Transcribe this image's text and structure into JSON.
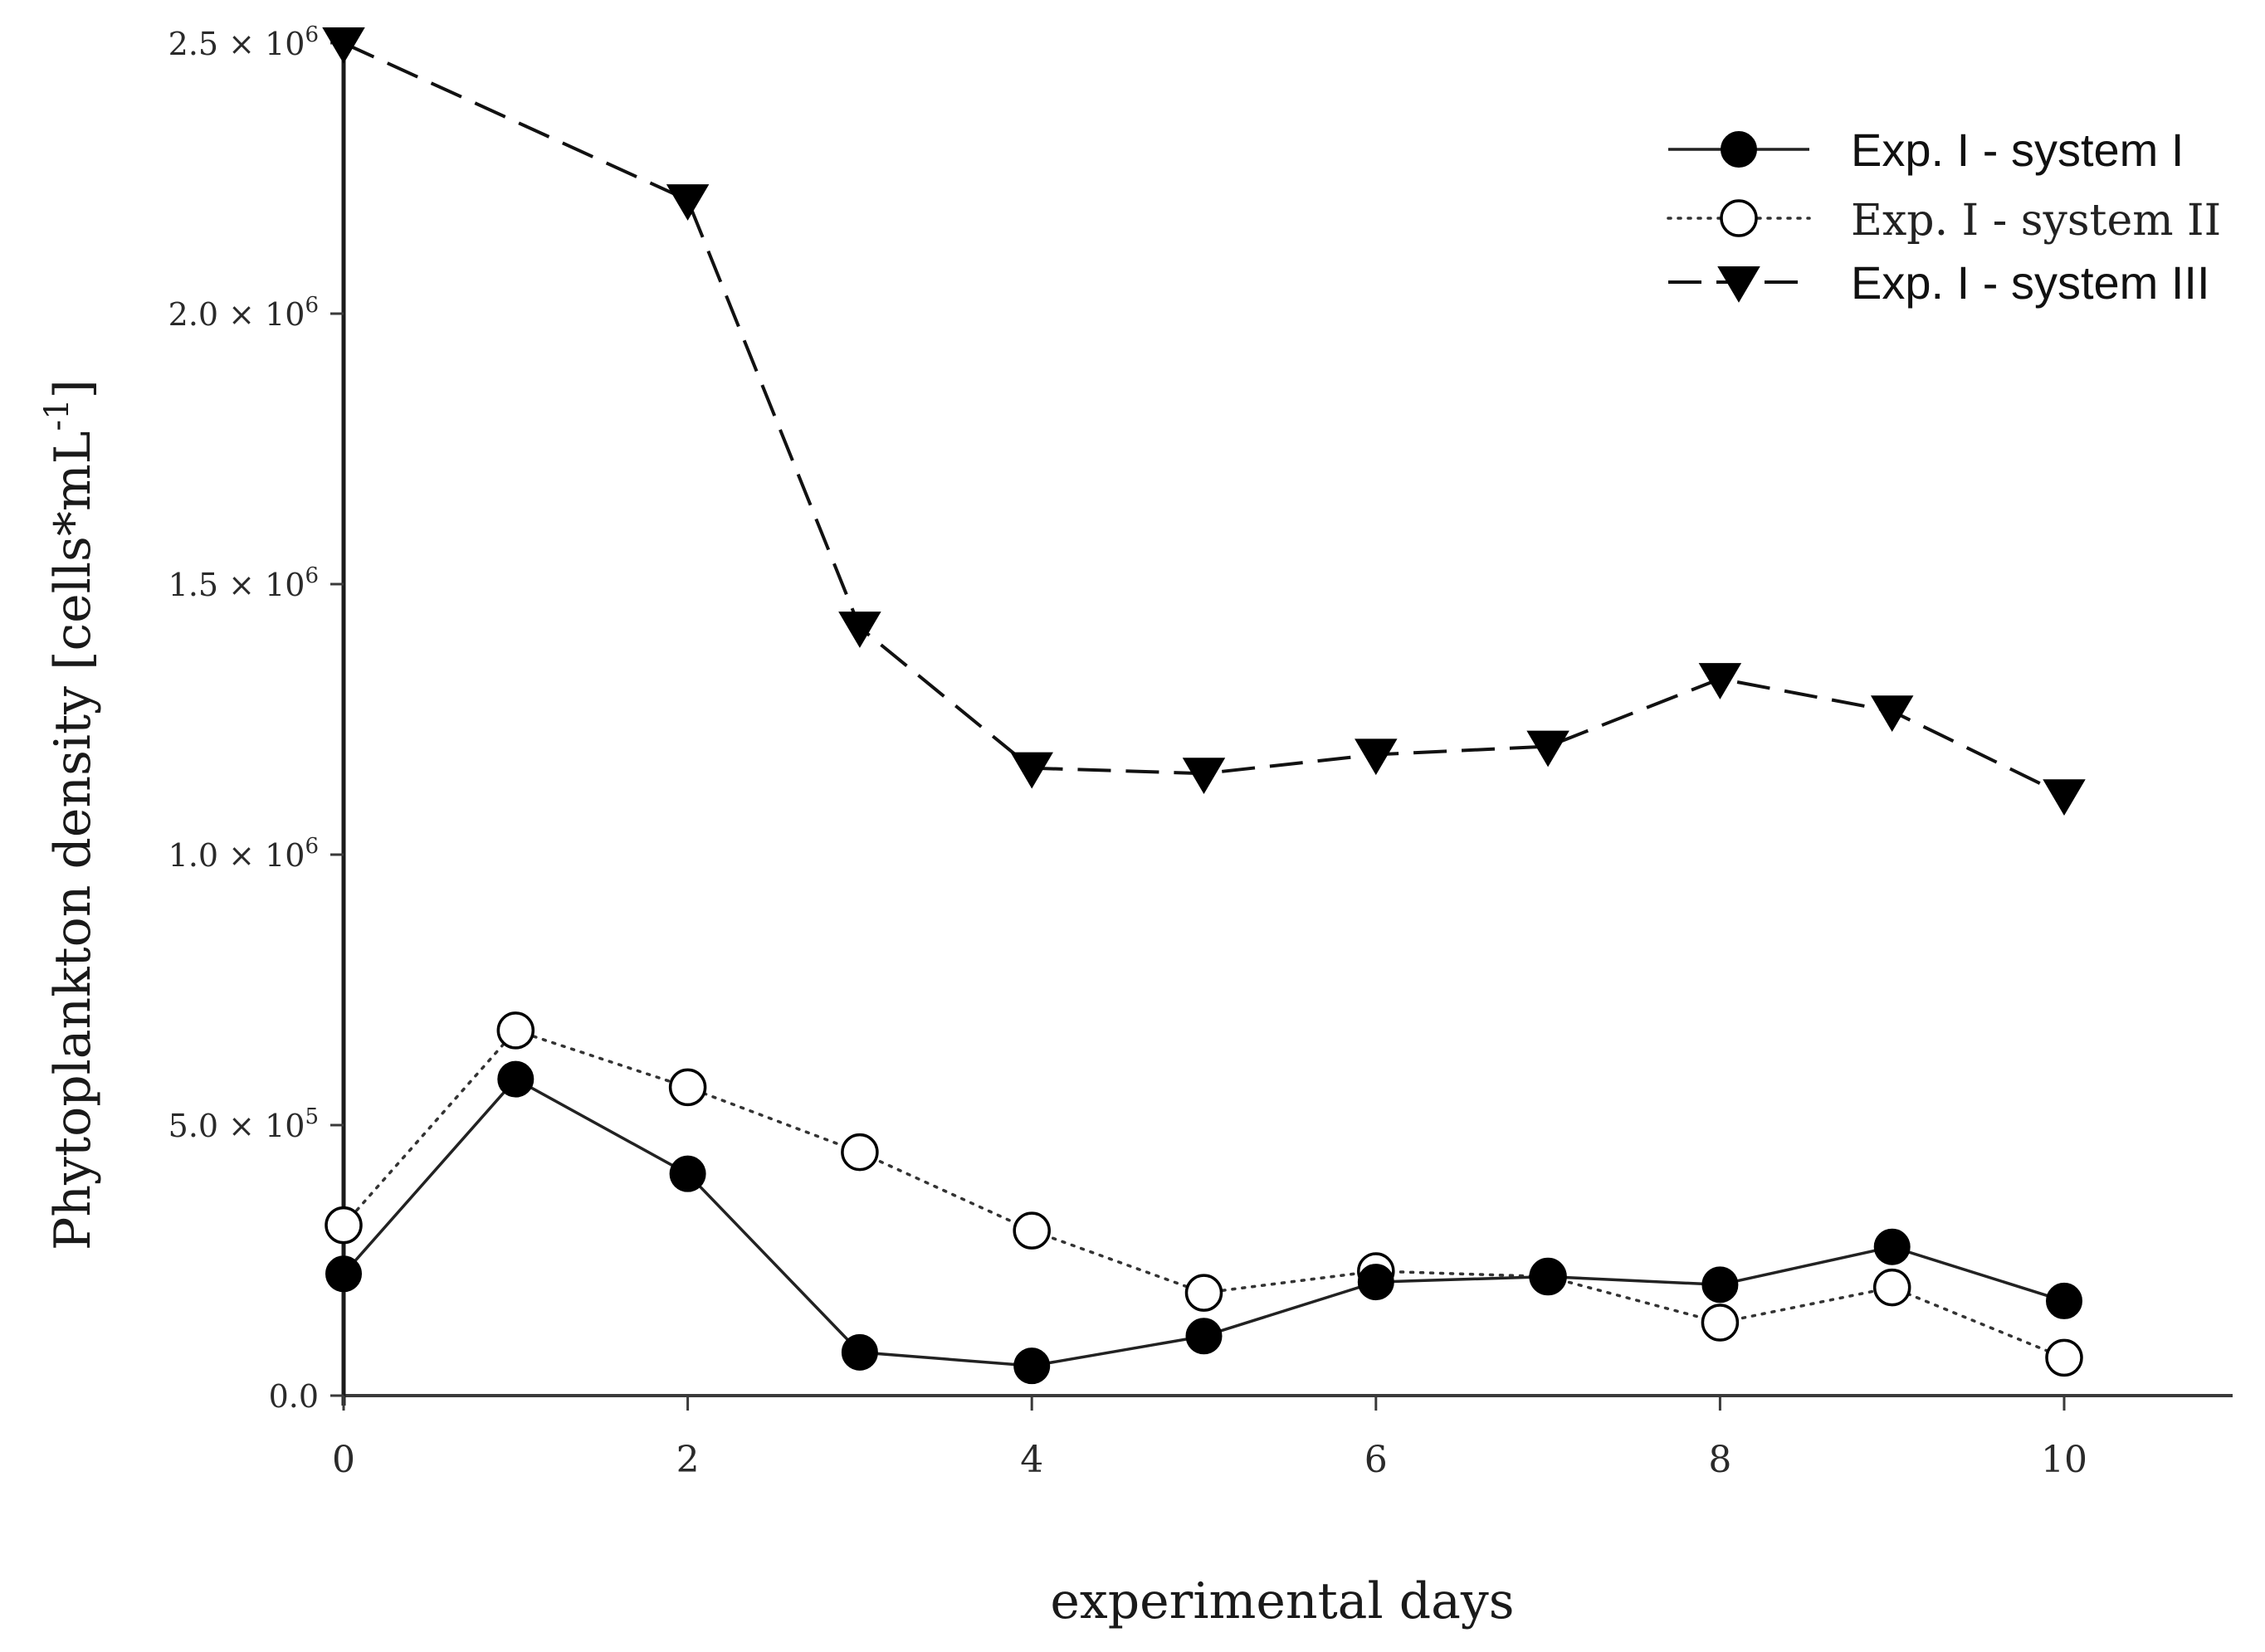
{
  "chart_data": {
    "type": "line",
    "title": "",
    "xlabel": "experimental days",
    "ylabel": "Phytoplankton density [cells*mL",
    "ylabel_sup": "-1",
    "ylabel_close": "]",
    "xlim": [
      0,
      11
    ],
    "ylim": [
      0,
      2500000
    ],
    "xticks": [
      0,
      2,
      4,
      6,
      8,
      10
    ],
    "xtick_labels": [
      "0",
      "2",
      "4",
      "6",
      "8",
      "10"
    ],
    "yticks": [
      0,
      500000,
      1000000,
      1500000,
      2000000,
      2500000
    ],
    "ytick_labels": [
      {
        "mantissa": "0.0",
        "exp": ""
      },
      {
        "mantissa": "5.0 × 10",
        "exp": "5"
      },
      {
        "mantissa": "1.0 × 10",
        "exp": "6"
      },
      {
        "mantissa": "1.5 × 10",
        "exp": "6"
      },
      {
        "mantissa": "2.0 × 10",
        "exp": "6"
      },
      {
        "mantissa": "2.5 × 10",
        "exp": "6"
      }
    ],
    "grid": false,
    "legend_position": "top-right",
    "series": [
      {
        "name": "Exp. I - system I",
        "marker": "filled-circle",
        "line": "solid",
        "color": "#000000",
        "x": [
          0,
          1,
          2,
          3,
          4,
          5,
          6,
          7,
          8,
          9,
          10
        ],
        "values": [
          225000,
          585000,
          410000,
          80000,
          55000,
          110000,
          210000,
          220000,
          205000,
          275000,
          175000
        ]
      },
      {
        "name": "Exp. I - system II",
        "marker": "open-circle",
        "line": "dotted",
        "color": "#000000",
        "x": [
          0,
          1,
          2,
          3,
          4,
          5,
          6,
          7,
          8,
          9,
          10
        ],
        "values": [
          315000,
          675000,
          570000,
          450000,
          305000,
          190000,
          230000,
          220000,
          135000,
          200000,
          70000
        ]
      },
      {
        "name": "Exp. I - system III",
        "marker": "filled-triangle-down",
        "line": "dashed",
        "color": "#000000",
        "x": [
          0,
          2,
          3,
          4,
          5,
          6,
          7,
          8,
          9,
          10
        ],
        "values": [
          2500000,
          2210000,
          1420000,
          1160000,
          1150000,
          1185000,
          1200000,
          1325000,
          1265000,
          1110000
        ]
      }
    ]
  }
}
